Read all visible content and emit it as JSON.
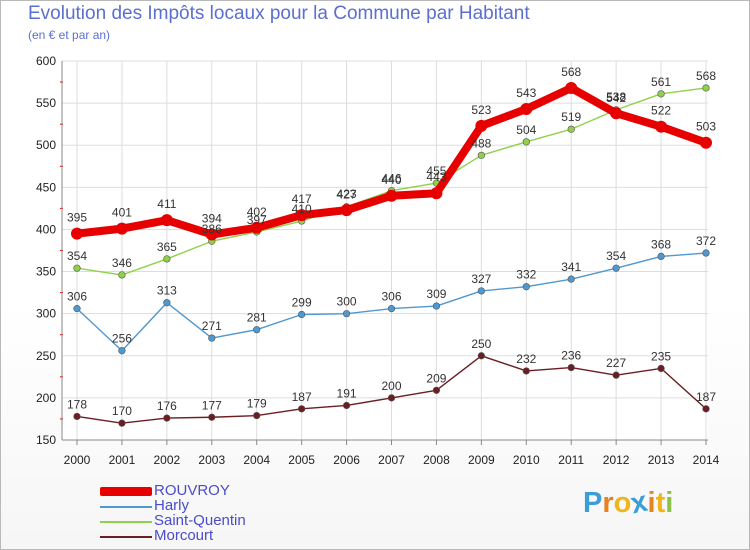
{
  "title": "Evolution des Impôts locaux pour la Commune par Habitant",
  "subtitle": "(en € et par an)",
  "brand": {
    "letters": [
      "P",
      "r",
      "o",
      "x",
      "i",
      "t",
      "i"
    ],
    "colors": [
      "#3c9ed8",
      "#e8821e",
      "#f0b51c",
      "#3c9ed8",
      "#e8821e",
      "#f0b51c",
      "#8bc34a"
    ]
  },
  "chart_data": {
    "type": "line",
    "title": "Evolution des Impôts locaux pour la Commune par Habitant",
    "subtitle": "(en € et par an)",
    "xlabel": "",
    "ylabel": "",
    "x": [
      "2000",
      "2001",
      "2002",
      "2003",
      "2004",
      "2005",
      "2006",
      "2007",
      "2008",
      "2009",
      "2010",
      "2011",
      "2012",
      "2013",
      "2014"
    ],
    "ylim": [
      150,
      600
    ],
    "yticks": [
      "150",
      "200",
      "250",
      "300",
      "350",
      "400",
      "450",
      "500",
      "550",
      "600"
    ],
    "grid": true,
    "legend_position": "bottom-left",
    "series": [
      {
        "name": "Saint-Quentin",
        "color": "#8fd14a",
        "values": [
          354,
          346,
          365,
          386,
          397,
          410,
          427,
          446,
          455,
          488,
          504,
          519,
          542,
          561,
          568
        ],
        "labels": [
          "354",
          "346",
          "365",
          "386",
          "397",
          "410",
          "427",
          "446",
          "455",
          "488",
          "504",
          "519",
          "542",
          "561",
          "568"
        ]
      },
      {
        "name": "Harly",
        "color": "#4f98d0",
        "values": [
          306,
          256,
          313,
          271,
          281,
          299,
          300,
          306,
          309,
          327,
          332,
          341,
          354,
          368,
          372
        ],
        "labels": [
          "306",
          "256",
          "313",
          "271",
          "281",
          "299",
          "300",
          "306",
          "309",
          "327",
          "332",
          "341",
          "354",
          "368",
          "372"
        ]
      },
      {
        "name": "Morcourt",
        "color": "#6b1e22",
        "values": [
          178,
          170,
          176,
          177,
          179,
          187,
          191,
          200,
          209,
          250,
          232,
          236,
          227,
          235,
          187
        ],
        "labels": [
          "178",
          "170",
          "176",
          "177",
          "179",
          "187",
          "191",
          "200",
          "209",
          "250",
          "232",
          "236",
          "227",
          "235",
          "187"
        ]
      },
      {
        "name": "ROUVROY",
        "color": "#e60000",
        "values": [
          395,
          401,
          411,
          394,
          402,
          417,
          423,
          440,
          443,
          523,
          543,
          568,
          538,
          522,
          503
        ],
        "labels": [
          "395",
          "401",
          "411",
          "394",
          "402",
          "417",
          "423",
          "440",
          "443",
          "523",
          "543",
          "568",
          "538",
          "522",
          "503"
        ]
      }
    ],
    "legend": [
      {
        "name": "ROUVROY",
        "color": "#e60000"
      },
      {
        "name": "Harly",
        "color": "#4f98d0"
      },
      {
        "name": "Saint-Quentin",
        "color": "#8fd14a"
      },
      {
        "name": "Morcourt",
        "color": "#6b1e22"
      }
    ]
  }
}
